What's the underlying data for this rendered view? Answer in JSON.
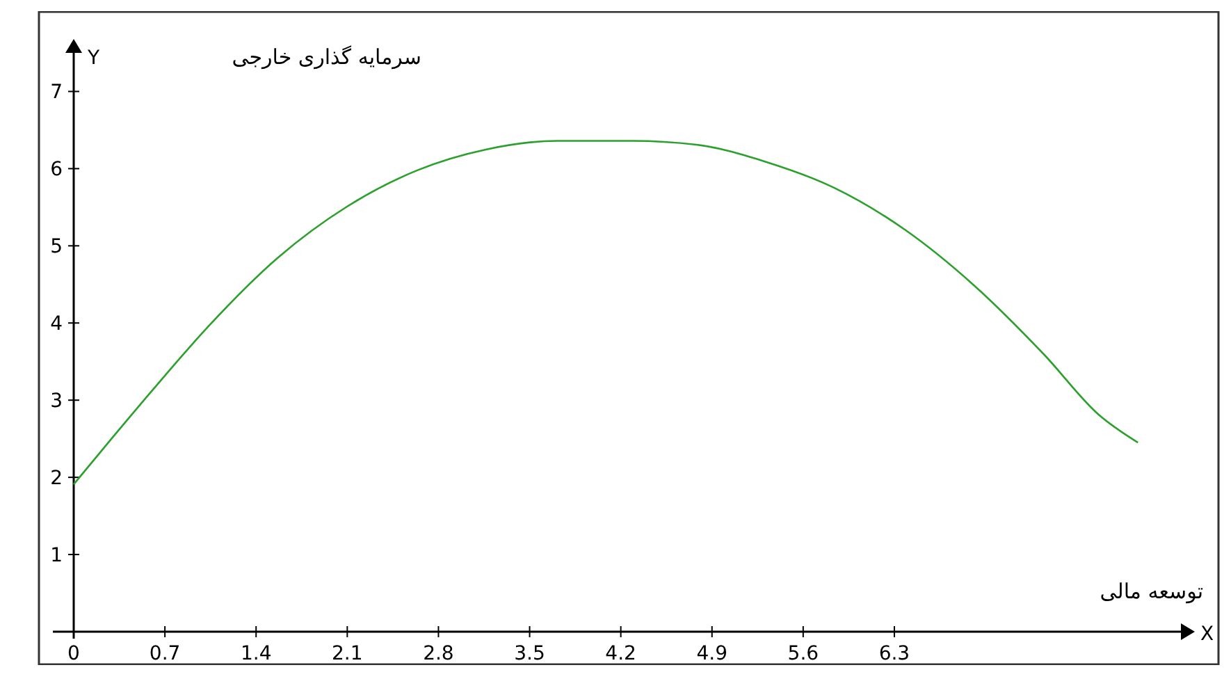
{
  "chart_data": {
    "type": "line",
    "xlabel": "توسعه مالی",
    "ylabel": "سرمایه گذاری خارجی",
    "annotations": [
      "Y",
      "X"
    ],
    "x": [
      0,
      0.29,
      0.61,
      1.03,
      1.57,
      2.1,
      2.64,
      3.17,
      3.71,
      4.29,
      4.78,
      5.31,
      5.84,
      6.38,
      6.91,
      7.45,
      7.87,
      8.17
    ],
    "series": [
      {
        "color": "#2ca02c",
        "values": [
          1.91,
          2.5,
          3.14,
          3.95,
          4.85,
          5.51,
          5.98,
          6.25,
          6.36,
          6.36,
          6.31,
          6.09,
          5.75,
          5.21,
          4.49,
          3.59,
          2.81,
          2.45
        ]
      }
    ],
    "xlim": [
      0,
      8.5
    ],
    "ylim": [
      0,
      7.5
    ],
    "xticks": [
      {
        "value": 0,
        "label": "0"
      },
      0.7,
      1.4,
      2.1,
      2.8,
      3.5,
      4.2,
      4.9,
      5.6,
      6.3
    ],
    "yticks": [
      1,
      2,
      3,
      4,
      5,
      6,
      7
    ],
    "grid": false,
    "marker": "none",
    "line_style": "solid"
  }
}
